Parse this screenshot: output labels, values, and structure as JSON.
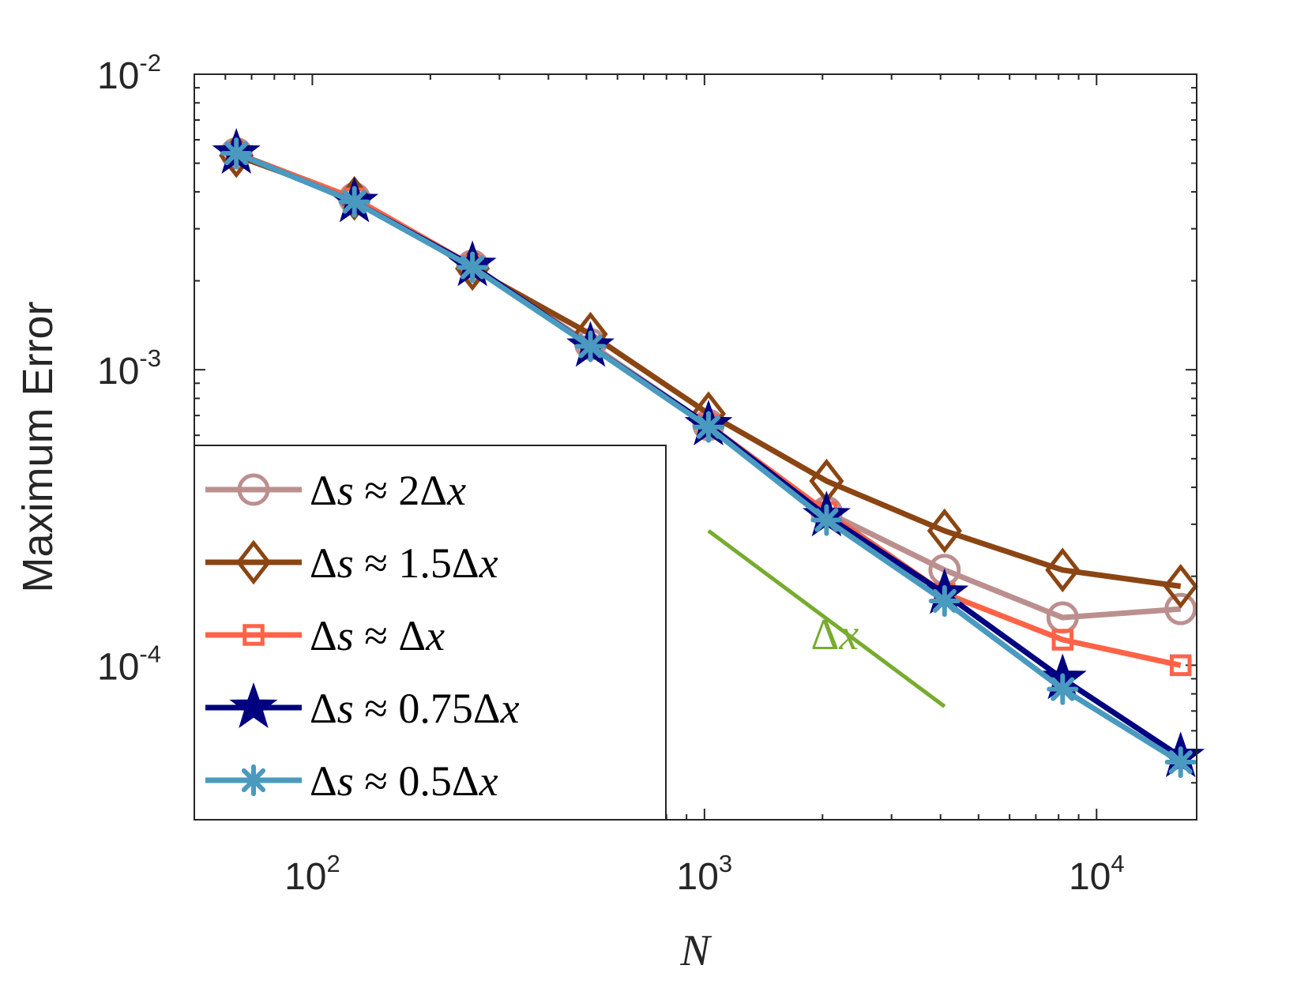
{
  "chart_data": {
    "type": "line",
    "xscale": "log",
    "yscale": "log",
    "xlabel": "N",
    "ylabel": "Maximum Error",
    "xlim": [
      50,
      18000
    ],
    "ylim": [
      3e-05,
      0.01
    ],
    "x": [
      64,
      128,
      256,
      512,
      1024,
      2048,
      4096,
      8192,
      16384
    ],
    "x_ticks": [
      {
        "base": "10",
        "exp": "2",
        "value": 100
      },
      {
        "base": "10",
        "exp": "3",
        "value": 1000
      },
      {
        "base": "10",
        "exp": "4",
        "value": 10000
      }
    ],
    "y_ticks": [
      {
        "base": "10",
        "exp": "-2",
        "value": 0.01
      },
      {
        "base": "10",
        "exp": "-3",
        "value": 0.001
      },
      {
        "base": "10",
        "exp": "-4",
        "value": 0.0001
      }
    ],
    "legend_position": "bottom-left",
    "series": [
      {
        "name": "2Δx",
        "ratio": "2",
        "color": "#bc8f8f",
        "marker": "circle",
        "values": [
          0.0054,
          0.0038,
          0.00225,
          0.00122,
          0.00065,
          0.00033,
          0.00021,
          0.000145,
          0.000155
        ]
      },
      {
        "name": "1.5Δx",
        "ratio": "1.5",
        "color": "#8b4513",
        "marker": "diamond",
        "values": [
          0.0053,
          0.0038,
          0.0022,
          0.00132,
          0.00071,
          0.00042,
          0.000285,
          0.00021,
          0.000185
        ]
      },
      {
        "name": "Δx",
        "ratio": "",
        "color": "#ff6347",
        "marker": "square",
        "values": [
          0.0054,
          0.0038,
          0.00225,
          0.0012,
          0.00065,
          0.00033,
          0.000175,
          0.000122,
          0.0001
        ]
      },
      {
        "name": "0.75Δx",
        "ratio": "0.75",
        "color": "#000080",
        "marker": "star",
        "values": [
          0.0054,
          0.0037,
          0.00225,
          0.0012,
          0.00065,
          0.00032,
          0.000175,
          9e-05,
          4.9e-05
        ]
      },
      {
        "name": "0.5Δx",
        "ratio": "0.5",
        "color": "#4a9ac0",
        "marker": "asterisk",
        "values": [
          0.0054,
          0.0037,
          0.00222,
          0.0012,
          0.00064,
          0.00031,
          0.000165,
          8.3e-05,
          4.7e-05
        ]
      }
    ],
    "reference_line": {
      "label": "Δx",
      "color": "#77ac30",
      "x": [
        1024,
        4096
      ],
      "y": [
        0.000285,
        7.25e-05
      ]
    }
  },
  "legend": {
    "prefix": "Δs ≈ ",
    "entries": [
      "2Δx",
      "1.5Δx",
      "Δx",
      "0.75Δx",
      "0.5Δx"
    ]
  }
}
